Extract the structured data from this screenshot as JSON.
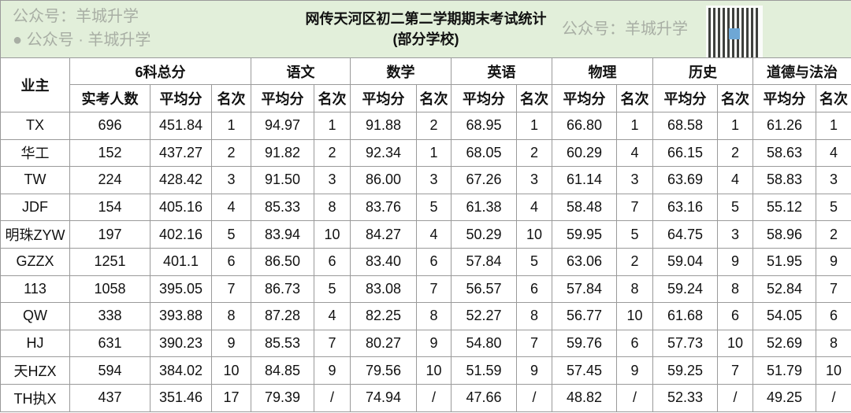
{
  "title": "网传天河区初二第二学期期末考试统计",
  "subtitle": "(部分学校)",
  "header": {
    "owner": "业主",
    "groups": [
      "6科总分",
      "语文",
      "数学",
      "英语",
      "物理",
      "历史",
      "道德与法治"
    ],
    "sub_count": "实考人数",
    "sub_avg": "平均分",
    "sub_rank": "名次"
  },
  "rows": [
    [
      "TX",
      "696",
      "451.84",
      "1",
      "94.97",
      "1",
      "91.88",
      "2",
      "68.95",
      "1",
      "66.80",
      "1",
      "68.58",
      "1",
      "61.26",
      "1"
    ],
    [
      "华工",
      "152",
      "437.27",
      "2",
      "91.82",
      "2",
      "92.34",
      "1",
      "68.05",
      "2",
      "60.29",
      "4",
      "66.15",
      "2",
      "58.63",
      "4"
    ],
    [
      "TW",
      "224",
      "428.42",
      "3",
      "91.50",
      "3",
      "86.00",
      "3",
      "67.26",
      "3",
      "61.14",
      "3",
      "63.69",
      "4",
      "58.83",
      "3"
    ],
    [
      "JDF",
      "154",
      "405.16",
      "4",
      "85.33",
      "8",
      "83.76",
      "5",
      "61.38",
      "4",
      "58.48",
      "7",
      "63.16",
      "5",
      "55.12",
      "5"
    ],
    [
      "明珠ZYW",
      "197",
      "402.16",
      "5",
      "83.94",
      "10",
      "84.27",
      "4",
      "50.29",
      "10",
      "59.95",
      "5",
      "64.75",
      "3",
      "58.96",
      "2"
    ],
    [
      "GZZX",
      "1251",
      "401.1",
      "6",
      "86.50",
      "6",
      "83.40",
      "6",
      "57.84",
      "5",
      "63.06",
      "2",
      "59.04",
      "9",
      "51.95",
      "9"
    ],
    [
      "113",
      "1058",
      "395.05",
      "7",
      "86.73",
      "5",
      "83.08",
      "7",
      "56.57",
      "6",
      "57.84",
      "8",
      "59.24",
      "8",
      "52.84",
      "7"
    ],
    [
      "QW",
      "338",
      "393.88",
      "8",
      "87.28",
      "4",
      "82.25",
      "8",
      "52.27",
      "8",
      "56.77",
      "10",
      "61.68",
      "6",
      "54.05",
      "6"
    ],
    [
      "HJ",
      "631",
      "390.23",
      "9",
      "85.53",
      "7",
      "80.27",
      "9",
      "54.80",
      "7",
      "59.76",
      "6",
      "57.73",
      "10",
      "52.69",
      "8"
    ],
    [
      "天HZX",
      "594",
      "384.02",
      "10",
      "84.85",
      "9",
      "79.56",
      "10",
      "51.59",
      "9",
      "57.45",
      "9",
      "59.25",
      "7",
      "51.79",
      "10"
    ],
    [
      "TH执X",
      "437",
      "351.46",
      "17",
      "79.39",
      "/",
      "74.94",
      "/",
      "47.66",
      "/",
      "48.82",
      "/",
      "52.33",
      "/",
      "49.25",
      "/"
    ]
  ],
  "watermarks": [
    "公众号：羊城升学",
    "公众号：羊城升学",
    "公众号 · 羊城升学"
  ],
  "colors": {
    "title_bg": "#e2efda",
    "border": "#9a9a9a"
  }
}
